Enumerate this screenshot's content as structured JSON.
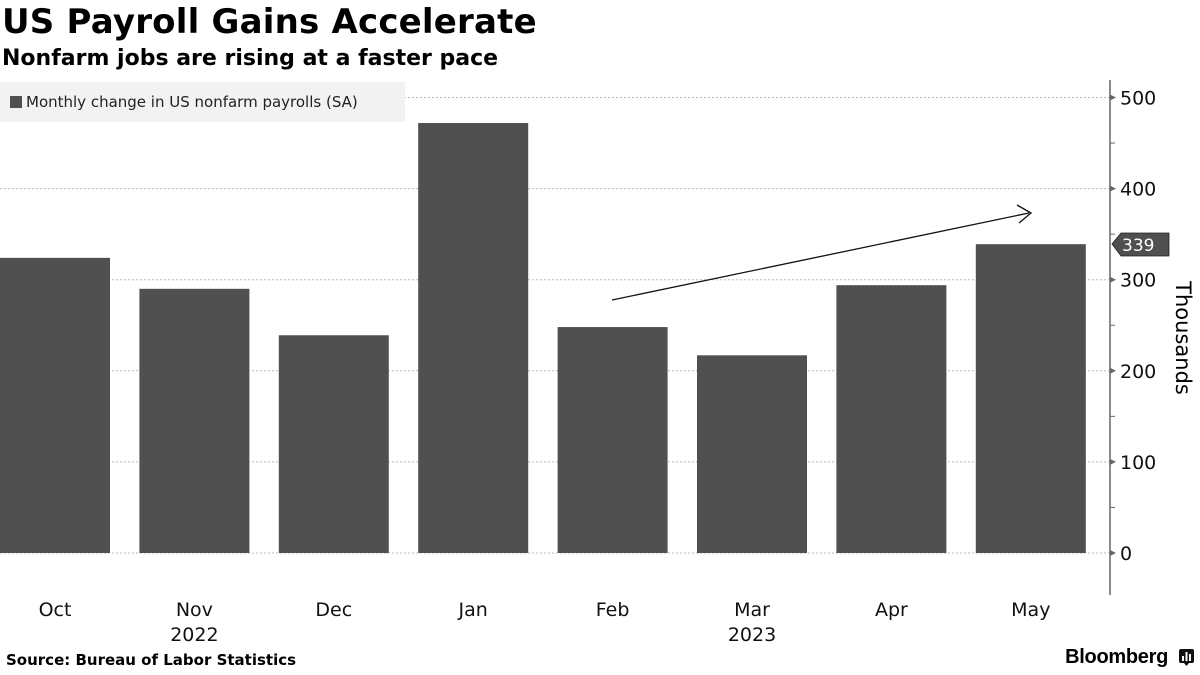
{
  "header": {
    "title": "US Payroll Gains Accelerate",
    "subtitle": "Nonfarm jobs are rising at a faster pace"
  },
  "legend": {
    "items": [
      {
        "label": "Monthly change in US nonfarm payrolls (SA)",
        "color": "#505050"
      }
    ]
  },
  "axis": {
    "y_label": "Thousands",
    "y_ticks": [
      "0",
      "100",
      "200",
      "300",
      "400",
      "500"
    ],
    "x_ticks": [
      "Oct",
      "Nov",
      "Dec",
      "Jan",
      "Feb",
      "Mar",
      "Apr",
      "May"
    ],
    "year_labels": [
      {
        "label": "2022",
        "under": "Nov"
      },
      {
        "label": "2023",
        "under": "Mar"
      }
    ]
  },
  "callout": {
    "value_label": "339"
  },
  "footer": {
    "source": "Source: Bureau of Labor Statistics",
    "brand": "Bloomberg"
  },
  "colors": {
    "bar": "#505050",
    "grid": "#bbbbbb",
    "axis": "#666666",
    "legend_bg": "#f2f2f2"
  },
  "chart_data": {
    "type": "bar",
    "title": "US Payroll Gains Accelerate",
    "subtitle": "Nonfarm jobs are rising at a faster pace",
    "categories": [
      "Oct 2022",
      "Nov 2022",
      "Dec 2022",
      "Jan 2023",
      "Feb 2023",
      "Mar 2023",
      "Apr 2023",
      "May 2023"
    ],
    "series": [
      {
        "name": "Monthly change in US nonfarm payrolls (SA)",
        "values": [
          324,
          290,
          239,
          472,
          248,
          217,
          294,
          339
        ]
      }
    ],
    "xlabel": "",
    "ylabel": "Thousands",
    "ylim": [
      0,
      500
    ],
    "y_ticks": [
      0,
      100,
      200,
      300,
      400,
      500
    ],
    "grid": true,
    "y_axis_position": "right",
    "legend_position": "top-left",
    "annotations": [
      {
        "type": "arrow",
        "from": "Feb",
        "to": "May",
        "meaning": "upward trend"
      },
      {
        "type": "value-tag",
        "label": "339",
        "category": "May 2023"
      }
    ],
    "source": "Source: Bureau of Labor Statistics"
  }
}
